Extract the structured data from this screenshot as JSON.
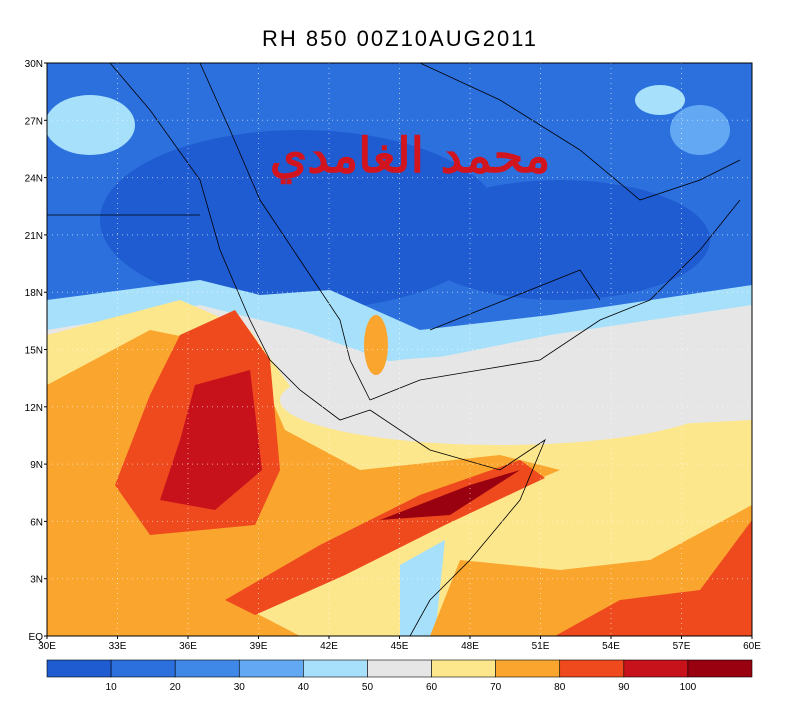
{
  "title": "RH 850 00Z10AUG2011",
  "watermark": "محمد الغامدي",
  "map": {
    "lat_labels": [
      "EQ",
      "3N",
      "6N",
      "9N",
      "12N",
      "15N",
      "18N",
      "21N",
      "24N",
      "27N",
      "30N"
    ],
    "lon_labels": [
      "30E",
      "33E",
      "36E",
      "39E",
      "42E",
      "45E",
      "48E",
      "51E",
      "54E",
      "57E",
      "60E"
    ]
  },
  "colorbar": {
    "colors": [
      "#1f5cd2",
      "#2c70de",
      "#3f88e8",
      "#62a8f2",
      "#a6e0fa",
      "#e6e6e6",
      "#fde78c",
      "#f9a52e",
      "#ee4a1e",
      "#c7121b",
      "#990010"
    ],
    "labels": [
      "10",
      "20",
      "30",
      "40",
      "50",
      "60",
      "70",
      "80",
      "90",
      "100"
    ]
  }
}
